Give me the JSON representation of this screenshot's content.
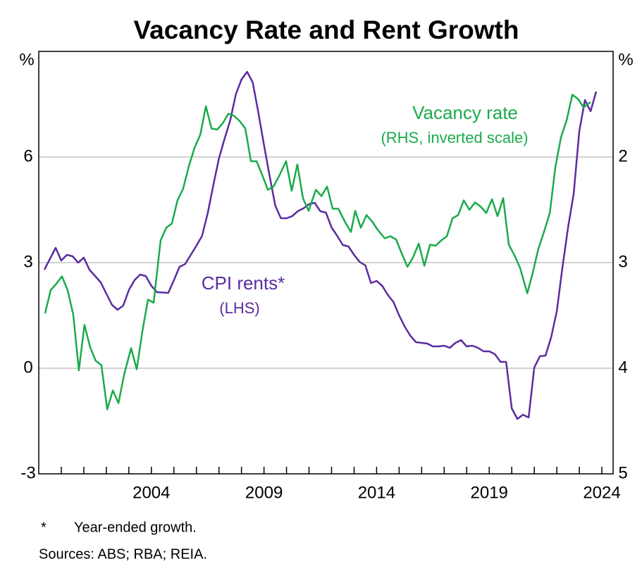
{
  "chart_data": {
    "type": "line",
    "title": "Vacancy Rate and Rent Growth",
    "ylabel": "%",
    "y2label": "%",
    "xlim": [
      1999,
      2024.5
    ],
    "xticks": [
      2004,
      2009,
      2014,
      2019,
      2024
    ],
    "xminor_ticks": [
      2000,
      2001,
      2002,
      2003,
      2004,
      2005,
      2006,
      2007,
      2008,
      2009,
      2010,
      2011,
      2012,
      2013,
      2014,
      2015,
      2016,
      2017,
      2018,
      2019,
      2020,
      2021,
      2022,
      2023,
      2024
    ],
    "ylim": [
      -3,
      9
    ],
    "yticks": [
      -3,
      0,
      3,
      6
    ],
    "y2lim": [
      5,
      1
    ],
    "y2ticks": [
      2,
      3,
      4,
      5
    ],
    "y2_inverted": true,
    "grid": true,
    "series": [
      {
        "name": "CPI rents*",
        "color": "#5b2c9f",
        "axis": "y",
        "x": [
          1999.25,
          1999.75,
          2000.0,
          2000.25,
          2000.5,
          2000.75,
          2001.0,
          2001.25,
          2001.75,
          2002.25,
          2002.5,
          2002.75,
          2003.0,
          2003.25,
          2003.5,
          2003.75,
          2004.0,
          2004.25,
          2004.75,
          2005.0,
          2005.25,
          2005.5,
          2006.0,
          2006.25,
          2006.5,
          2006.75,
          2007.0,
          2007.25,
          2007.5,
          2007.75,
          2008.0,
          2008.25,
          2008.5,
          2008.75,
          2009.0,
          2009.25,
          2009.5,
          2009.75,
          2010.0,
          2010.25,
          2010.5,
          2010.75,
          2011.0,
          2011.25,
          2011.5,
          2011.75,
          2012.0,
          2012.25,
          2012.5,
          2012.75,
          2013.0,
          2013.25,
          2013.5,
          2013.75,
          2014.0,
          2014.25,
          2014.5,
          2014.75,
          2015.0,
          2015.25,
          2015.5,
          2015.75,
          2016.0,
          2016.25,
          2016.5,
          2016.75,
          2017.0,
          2017.25,
          2017.5,
          2017.75,
          2018.0,
          2018.25,
          2018.5,
          2018.75,
          2019.0,
          2019.25,
          2019.5,
          2019.75,
          2020.0,
          2020.25,
          2020.5,
          2020.75,
          2021.0,
          2021.25,
          2021.5,
          2021.75,
          2022.0,
          2022.25,
          2022.5,
          2022.75,
          2023.0,
          2023.25,
          2023.5,
          2023.75
        ],
        "values": [
          2.8,
          3.42,
          3.06,
          3.22,
          3.18,
          3.0,
          3.14,
          2.8,
          2.44,
          1.8,
          1.66,
          1.78,
          2.22,
          2.5,
          2.66,
          2.62,
          2.34,
          2.16,
          2.14,
          2.5,
          2.88,
          2.96,
          3.48,
          3.76,
          4.4,
          5.2,
          5.96,
          6.52,
          7.04,
          7.78,
          8.2,
          8.42,
          8.12,
          7.26,
          6.34,
          5.46,
          4.62,
          4.26,
          4.26,
          4.32,
          4.46,
          4.54,
          4.66,
          4.7,
          4.46,
          4.42,
          4.0,
          3.76,
          3.5,
          3.46,
          3.22,
          3.02,
          2.92,
          2.42,
          2.48,
          2.34,
          2.08,
          1.88,
          1.5,
          1.18,
          0.92,
          0.74,
          0.72,
          0.7,
          0.62,
          0.62,
          0.64,
          0.58,
          0.72,
          0.8,
          0.62,
          0.64,
          0.58,
          0.48,
          0.48,
          0.4,
          0.18,
          0.18,
          -1.14,
          -1.44,
          -1.32,
          -1.4,
          0.02,
          0.34,
          0.36,
          0.88,
          1.62,
          2.86,
          4.0,
          4.96,
          6.74,
          7.62,
          7.3,
          7.86
        ]
      },
      {
        "name": "Vacancy rate",
        "color": "#1aab4b",
        "axis": "y2",
        "x": [
          1999.28,
          1999.53,
          1999.78,
          2000.03,
          2000.28,
          2000.53,
          2000.78,
          2001.03,
          2001.28,
          2001.53,
          2001.78,
          2002.04,
          2002.29,
          2002.54,
          2002.79,
          2003.1,
          2003.35,
          2003.6,
          2003.85,
          2004.1,
          2004.41,
          2004.66,
          2004.91,
          2005.16,
          2005.41,
          2005.66,
          2005.92,
          2006.17,
          2006.42,
          2006.67,
          2006.92,
          2007.17,
          2007.42,
          2007.67,
          2007.92,
          2008.17,
          2008.42,
          2008.67,
          2008.92,
          2009.17,
          2009.42,
          2009.67,
          2009.98,
          2010.23,
          2010.48,
          2010.73,
          2010.98,
          2011.3,
          2011.55,
          2011.8,
          2012.05,
          2012.3,
          2012.61,
          2012.86,
          2013.05,
          2013.3,
          2013.55,
          2013.8,
          2014.05,
          2014.36,
          2014.61,
          2014.86,
          2015.11,
          2015.37,
          2015.62,
          2015.87,
          2016.12,
          2016.37,
          2016.62,
          2016.87,
          2017.12,
          2017.37,
          2017.62,
          2017.87,
          2018.12,
          2018.37,
          2018.62,
          2018.87,
          2019.12,
          2019.37,
          2019.62,
          2019.87,
          2020.12,
          2020.37,
          2020.69,
          2020.94,
          2021.18,
          2021.43,
          2021.69,
          2021.94,
          2022.19,
          2022.44,
          2022.69,
          2022.94,
          2023.19,
          2023.5
        ],
        "values": [
          3.48,
          3.26,
          3.2,
          3.13,
          3.26,
          3.49,
          4.02,
          3.59,
          3.8,
          3.93,
          3.97,
          4.39,
          4.21,
          4.33,
          4.06,
          3.81,
          4.01,
          3.65,
          3.35,
          3.38,
          2.79,
          2.67,
          2.63,
          2.41,
          2.3,
          2.09,
          1.91,
          1.79,
          1.52,
          1.73,
          1.74,
          1.68,
          1.59,
          1.61,
          1.66,
          1.73,
          2.04,
          2.04,
          2.17,
          2.31,
          2.28,
          2.18,
          2.04,
          2.32,
          2.07,
          2.39,
          2.51,
          2.31,
          2.37,
          2.28,
          2.49,
          2.49,
          2.62,
          2.71,
          2.51,
          2.67,
          2.55,
          2.61,
          2.69,
          2.77,
          2.75,
          2.78,
          2.91,
          3.04,
          2.95,
          2.82,
          3.03,
          2.83,
          2.84,
          2.79,
          2.75,
          2.58,
          2.55,
          2.41,
          2.5,
          2.43,
          2.47,
          2.53,
          2.4,
          2.56,
          2.39,
          2.83,
          2.93,
          3.05,
          3.29,
          3.09,
          2.87,
          2.71,
          2.53,
          2.09,
          1.81,
          1.65,
          1.41,
          1.45,
          1.53,
          1.48
        ]
      }
    ],
    "annotations": [
      {
        "text": "Vacancy rate",
        "color": "#1aab4b"
      },
      {
        "text": "(RHS, inverted scale)",
        "color": "#1aab4b"
      },
      {
        "text": "CPI rents*",
        "color": "#5b2c9f"
      },
      {
        "text": "(LHS)",
        "color": "#5b2c9f"
      }
    ],
    "notes": [
      {
        "marker": "*",
        "text": "Year-ended growth."
      }
    ],
    "sources": "Sources: ABS; RBA; REIA."
  }
}
